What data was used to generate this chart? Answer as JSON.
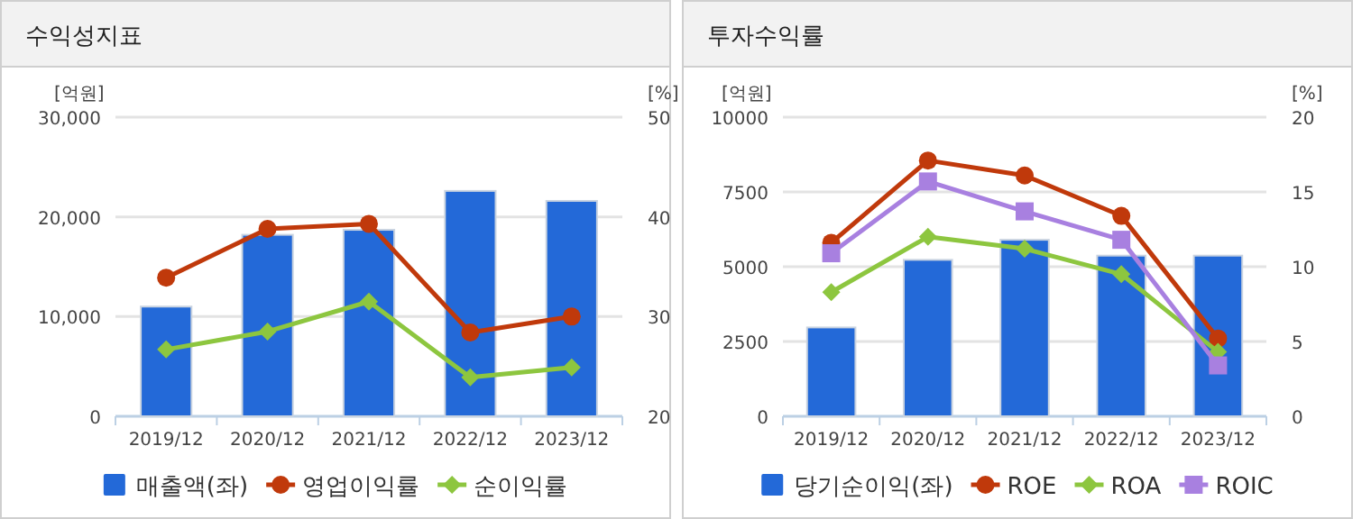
{
  "chart_data": [
    {
      "type": "bar",
      "title": "수익성지표",
      "ylabel": "[억원]",
      "y2label": "[%]",
      "categories": [
        "2019/12",
        "2020/12",
        "2021/12",
        "2022/12",
        "2023/12"
      ],
      "series": [
        {
          "name": "매출액(좌)",
          "color": "#2369d8",
          "values": [
            11000,
            18200,
            18700,
            22600,
            21600
          ]
        },
        {
          "name": "영업이익률",
          "type": "line",
          "axis": "y2",
          "marker": "circle",
          "color": "#c0390b",
          "values": [
            33.9,
            38.8,
            39.3,
            28.4,
            30.0
          ]
        },
        {
          "name": "순이익률",
          "type": "line",
          "axis": "y2",
          "marker": "diamond",
          "color": "#8dc63f",
          "values": [
            26.7,
            28.5,
            31.5,
            23.9,
            24.9
          ]
        }
      ],
      "ylim": [
        0,
        30000
      ],
      "yticks": [
        0,
        {
          "value": 10000,
          "label": "10,000"
        },
        {
          "value": 20000,
          "label": "20,000"
        },
        {
          "value": 30000,
          "label": "30,000"
        }
      ],
      "y2lim": [
        20,
        50
      ],
      "y2ticks": [
        20,
        30,
        40,
        50
      ],
      "grid": "y",
      "legend": "bottom"
    },
    {
      "type": "bar",
      "title": "투자수익률",
      "ylabel": "[억원]",
      "y2label": "[%]",
      "categories": [
        "2019/12",
        "2020/12",
        "2021/12",
        "2022/12",
        "2023/12"
      ],
      "series": [
        {
          "name": "당기순이익(좌)",
          "color": "#2369d8",
          "values": [
            2970,
            5230,
            5900,
            5370,
            5370
          ]
        },
        {
          "name": "ROE",
          "type": "line",
          "axis": "y2",
          "marker": "circle",
          "color": "#c0390b",
          "values": [
            11.6,
            17.1,
            16.1,
            13.4,
            5.2
          ]
        },
        {
          "name": "ROA",
          "type": "line",
          "axis": "y2",
          "marker": "diamond",
          "color": "#8dc63f",
          "values": [
            8.3,
            12.0,
            11.2,
            9.5,
            4.3
          ]
        },
        {
          "name": "ROIC",
          "type": "line",
          "axis": "y2",
          "marker": "square",
          "color": "#a880e0",
          "values": [
            10.9,
            15.7,
            13.7,
            11.8,
            3.4
          ]
        }
      ],
      "ylim": [
        0,
        10000
      ],
      "yticks": [
        0,
        2500,
        5000,
        7500,
        10000
      ],
      "y2lim": [
        0,
        20
      ],
      "y2ticks": [
        0,
        5,
        10,
        15,
        20
      ],
      "grid": "y",
      "legend": "bottom"
    }
  ]
}
